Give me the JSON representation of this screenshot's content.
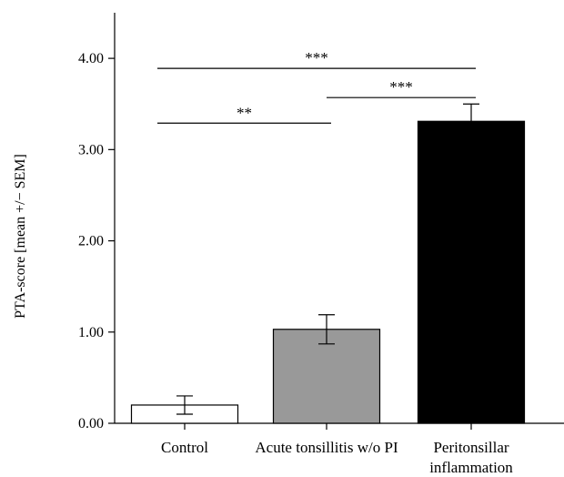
{
  "chart_data": {
    "type": "bar",
    "title": "",
    "xlabel": "",
    "ylabel": "PTA-score [mean +/− SEM]",
    "ylim": [
      0,
      4.5
    ],
    "yticks": [
      {
        "value": 0,
        "label": "0.00"
      },
      {
        "value": 1,
        "label": "1.00"
      },
      {
        "value": 2,
        "label": "2.00"
      },
      {
        "value": 3,
        "label": "3.00"
      },
      {
        "value": 4,
        "label": "4.00"
      }
    ],
    "categories": [
      {
        "lines": [
          "Control"
        ]
      },
      {
        "lines": [
          "Acute tonsillitis w/o PI"
        ]
      },
      {
        "lines": [
          "Peritonsillar",
          "inflammation"
        ]
      }
    ],
    "values": [
      0.2,
      1.03,
      3.31
    ],
    "errors": [
      0.1,
      0.16,
      0.19
    ],
    "bar_colors": [
      "#ffffff",
      "#999999",
      "#000000"
    ],
    "significance": [
      {
        "from": 0,
        "to": 1,
        "y": 3.29,
        "label": "**"
      },
      {
        "from": 1,
        "to": 2,
        "y": 3.57,
        "label": "***"
      },
      {
        "from": 0,
        "to": 2,
        "y": 3.89,
        "label": "***"
      }
    ],
    "grid": false,
    "frame": "open-top-right"
  }
}
